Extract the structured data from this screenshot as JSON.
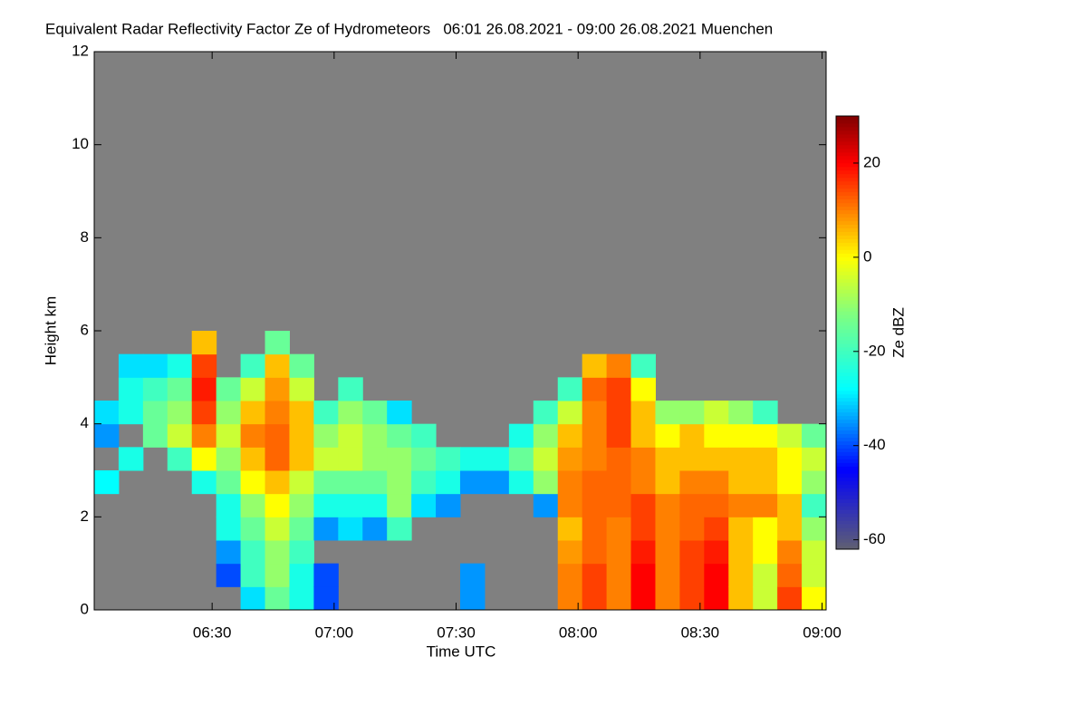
{
  "chart_data": {
    "type": "heatmap",
    "title": "Equivalent Radar Reflectivity Factor Ze of Hydrometeors   06:01 26.08.2021 - 09:00 26.08.2021 Muenchen",
    "x_label": "Time UTC",
    "y_label": "Height km",
    "colorbar_label": "Ze dBZ",
    "background_color": "#808080",
    "x": [
      "06:01",
      "06:07",
      "06:13",
      "06:19",
      "06:25",
      "06:31",
      "06:37",
      "06:43",
      "06:49",
      "06:55",
      "07:01",
      "07:07",
      "07:13",
      "07:19",
      "07:25",
      "07:31",
      "07:37",
      "07:43",
      "07:49",
      "07:55",
      "08:01",
      "08:07",
      "08:13",
      "08:19",
      "08:25",
      "08:31",
      "08:37",
      "08:43",
      "08:49",
      "08:55"
    ],
    "y": [
      0,
      0.5,
      1,
      1.5,
      2,
      2.5,
      3,
      3.5,
      4,
      4.5,
      5,
      5.5
    ],
    "z": [
      [
        null,
        null,
        null,
        null,
        null,
        -28,
        null,
        -35,
        -30,
        null,
        null,
        null
      ],
      [
        null,
        null,
        null,
        null,
        null,
        null,
        -25,
        null,
        -25,
        -25,
        -30,
        null
      ],
      [
        null,
        null,
        null,
        null,
        null,
        null,
        null,
        -15,
        -15,
        -20,
        -30,
        null
      ],
      [
        null,
        null,
        null,
        null,
        null,
        null,
        -20,
        -5,
        -10,
        -15,
        -25,
        null
      ],
      [
        null,
        null,
        null,
        null,
        null,
        -25,
        0,
        10,
        15,
        18,
        15,
        5
      ],
      [
        null,
        -40,
        -35,
        -25,
        -25,
        -15,
        -10,
        -5,
        -10,
        -15,
        null,
        null
      ],
      [
        -30,
        -20,
        -20,
        -15,
        -10,
        0,
        5,
        10,
        5,
        -5,
        -20,
        null
      ],
      [
        -15,
        -10,
        -10,
        -5,
        0,
        5,
        12,
        12,
        10,
        8,
        5,
        -15
      ],
      [
        -25,
        -25,
        -20,
        -15,
        -10,
        -5,
        5,
        5,
        5,
        -5,
        -15,
        null
      ],
      [
        -40,
        -40,
        null,
        -35,
        -25,
        -15,
        -5,
        -10,
        -20,
        null,
        null,
        null
      ],
      [
        null,
        null,
        null,
        -30,
        -25,
        -15,
        -5,
        -5,
        -10,
        -20,
        null,
        null
      ],
      [
        null,
        null,
        null,
        -35,
        -25,
        -15,
        -10,
        -10,
        -15,
        null,
        null,
        null
      ],
      [
        null,
        null,
        null,
        -20,
        -10,
        -10,
        -10,
        -15,
        -30,
        null,
        null,
        null
      ],
      [
        null,
        null,
        null,
        null,
        -30,
        -20,
        -15,
        -20,
        null,
        null,
        null,
        null
      ],
      [
        null,
        null,
        null,
        null,
        -35,
        -25,
        -20,
        null,
        null,
        null,
        null,
        null
      ],
      [
        -35,
        -35,
        null,
        null,
        null,
        -35,
        -25,
        null,
        null,
        null,
        null,
        null
      ],
      [
        null,
        null,
        null,
        null,
        null,
        -35,
        -25,
        null,
        null,
        null,
        null,
        null
      ],
      [
        null,
        null,
        null,
        null,
        null,
        -25,
        -15,
        -25,
        null,
        null,
        null,
        null
      ],
      [
        null,
        null,
        null,
        null,
        -35,
        -10,
        -5,
        -10,
        -20,
        null,
        null,
        null
      ],
      [
        10,
        10,
        8,
        5,
        10,
        10,
        8,
        5,
        -5,
        -20,
        null,
        null
      ],
      [
        15,
        15,
        12,
        12,
        12,
        12,
        10,
        10,
        10,
        12,
        5,
        null
      ],
      [
        10,
        10,
        10,
        10,
        12,
        12,
        12,
        15,
        15,
        15,
        10,
        null
      ],
      [
        20,
        20,
        18,
        15,
        15,
        10,
        10,
        5,
        5,
        0,
        -20,
        null
      ],
      [
        10,
        10,
        10,
        10,
        10,
        5,
        5,
        0,
        -10,
        null,
        null,
        null
      ],
      [
        15,
        15,
        15,
        12,
        12,
        10,
        5,
        5,
        -10,
        null,
        null,
        null
      ],
      [
        20,
        20,
        18,
        15,
        12,
        10,
        5,
        0,
        -5,
        null,
        null,
        null
      ],
      [
        5,
        5,
        5,
        5,
        10,
        5,
        5,
        0,
        -10,
        null,
        null,
        null
      ],
      [
        -5,
        -5,
        0,
        0,
        10,
        5,
        5,
        0,
        -20,
        null,
        null,
        null
      ],
      [
        15,
        12,
        10,
        5,
        5,
        0,
        0,
        -5,
        null,
        null,
        null,
        null
      ],
      [
        0,
        -5,
        -5,
        -10,
        -20,
        -10,
        -5,
        -15,
        null,
        null,
        null,
        null
      ]
    ],
    "x_step_minutes": 6,
    "y_step": 0.5,
    "xlim": [
      "06:01",
      "09:01"
    ],
    "xticks": [
      "06:30",
      "07:00",
      "07:30",
      "08:00",
      "08:30",
      "09:00"
    ],
    "ylim": [
      0,
      12
    ],
    "yticks": [
      0,
      2,
      4,
      6,
      8,
      10,
      12
    ],
    "clim": [
      -62,
      30
    ],
    "cticks": [
      -60,
      -40,
      -20,
      0,
      20
    ],
    "colorscale": [
      [
        -62,
        "#606070"
      ],
      [
        -45,
        "#0000ff"
      ],
      [
        -28,
        "#00ffff"
      ],
      [
        -12,
        "#80ff80"
      ],
      [
        0,
        "#ffff00"
      ],
      [
        10,
        "#ff8000"
      ],
      [
        20,
        "#ff0000"
      ],
      [
        30,
        "#800000"
      ]
    ]
  }
}
